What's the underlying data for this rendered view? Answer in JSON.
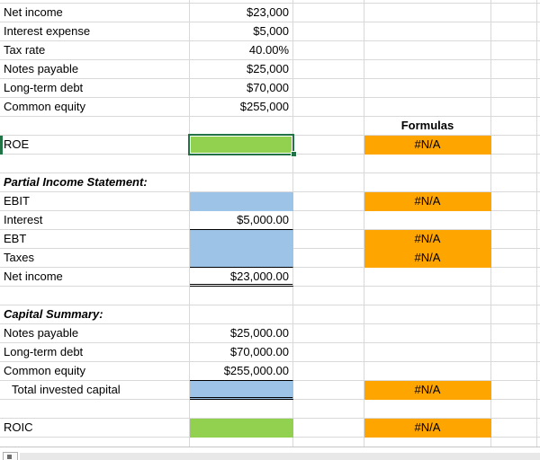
{
  "colors": {
    "fill_green": "#92d050",
    "fill_blue": "#9dc3e6",
    "fill_orange": "#ffa500",
    "selection_green": "#217346",
    "gridline": "#d9d9d9"
  },
  "rows": [
    {
      "label": "Net income",
      "value": "$23,000"
    },
    {
      "label": "Interest expense",
      "value": "$5,000"
    },
    {
      "label": "Tax rate",
      "value": "40.00%"
    },
    {
      "label": "Notes payable",
      "value": "$25,000"
    },
    {
      "label": "Long-term debt",
      "value": "$70,000"
    },
    {
      "label": "Common equity",
      "value": "$255,000"
    },
    {
      "label": "",
      "value": "",
      "formula": "Formulas",
      "formula_style": "header"
    },
    {
      "label": "ROE",
      "value": "",
      "value_fill": "green",
      "selected": true,
      "formula": "#N/A",
      "formula_style": "orange"
    },
    {
      "label": "",
      "value": ""
    },
    {
      "label": "Partial Income Statement:",
      "label_style": "section"
    },
    {
      "label": "EBIT",
      "value": "",
      "value_fill": "blue",
      "formula": "#N/A",
      "formula_style": "orange"
    },
    {
      "label": "Interest",
      "value": "$5,000.00",
      "value_border": "bottom"
    },
    {
      "label": "EBT",
      "value": "",
      "value_fill": "blue",
      "formula": "#N/A",
      "formula_style": "orange"
    },
    {
      "label": "Taxes",
      "value": "",
      "value_fill": "blue",
      "value_border": "bottom",
      "formula": "#N/A",
      "formula_style": "orange"
    },
    {
      "label": "Net income",
      "value": "$23,000.00",
      "value_border": "double"
    },
    {
      "label": "",
      "value": ""
    },
    {
      "label": "Capital Summary:",
      "label_style": "section"
    },
    {
      "label": "Notes payable",
      "value": "$25,000.00"
    },
    {
      "label": "Long-term debt",
      "value": "$70,000.00"
    },
    {
      "label": "Common equity",
      "value": "$255,000.00",
      "value_border": "bottom"
    },
    {
      "label": "Total invested capital",
      "label_style": "indent",
      "value": "",
      "value_fill": "blue",
      "value_border": "double",
      "formula": "#N/A",
      "formula_style": "orange"
    },
    {
      "label": "",
      "value": ""
    },
    {
      "label": "ROIC",
      "value": "",
      "value_fill": "green",
      "formula": "#N/A",
      "formula_style": "orange"
    }
  ]
}
